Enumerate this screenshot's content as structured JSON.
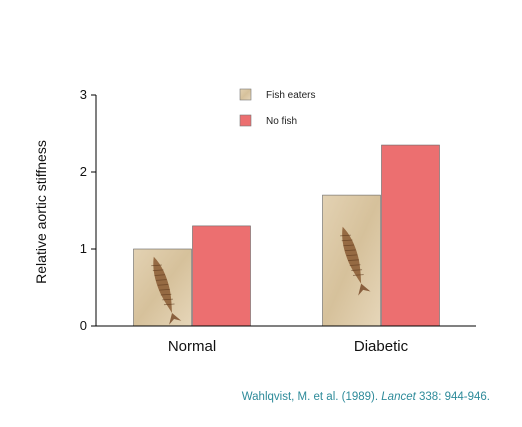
{
  "chart_data": {
    "type": "bar",
    "categories": [
      "Normal",
      "Diabetic"
    ],
    "series": [
      {
        "name": "Fish eaters",
        "values": [
          1.0,
          1.7
        ]
      },
      {
        "name": "No fish",
        "values": [
          1.3,
          2.35
        ]
      }
    ],
    "title": "",
    "xlabel": "",
    "ylabel": "Relative aortic stiffness",
    "ylim": [
      0,
      3
    ],
    "yticks": [
      0,
      1,
      2,
      3
    ],
    "grid": false,
    "legend_position": "top-center"
  },
  "colors": {
    "fish_eaters": "#dcc7a3",
    "no_fish": "#ec6f70",
    "citation": "#2e8b9a"
  },
  "citation": {
    "authors": "Wahlqvist, M. et al. (1989).",
    "journal": "Lancet",
    "details": "338: 944-946."
  }
}
